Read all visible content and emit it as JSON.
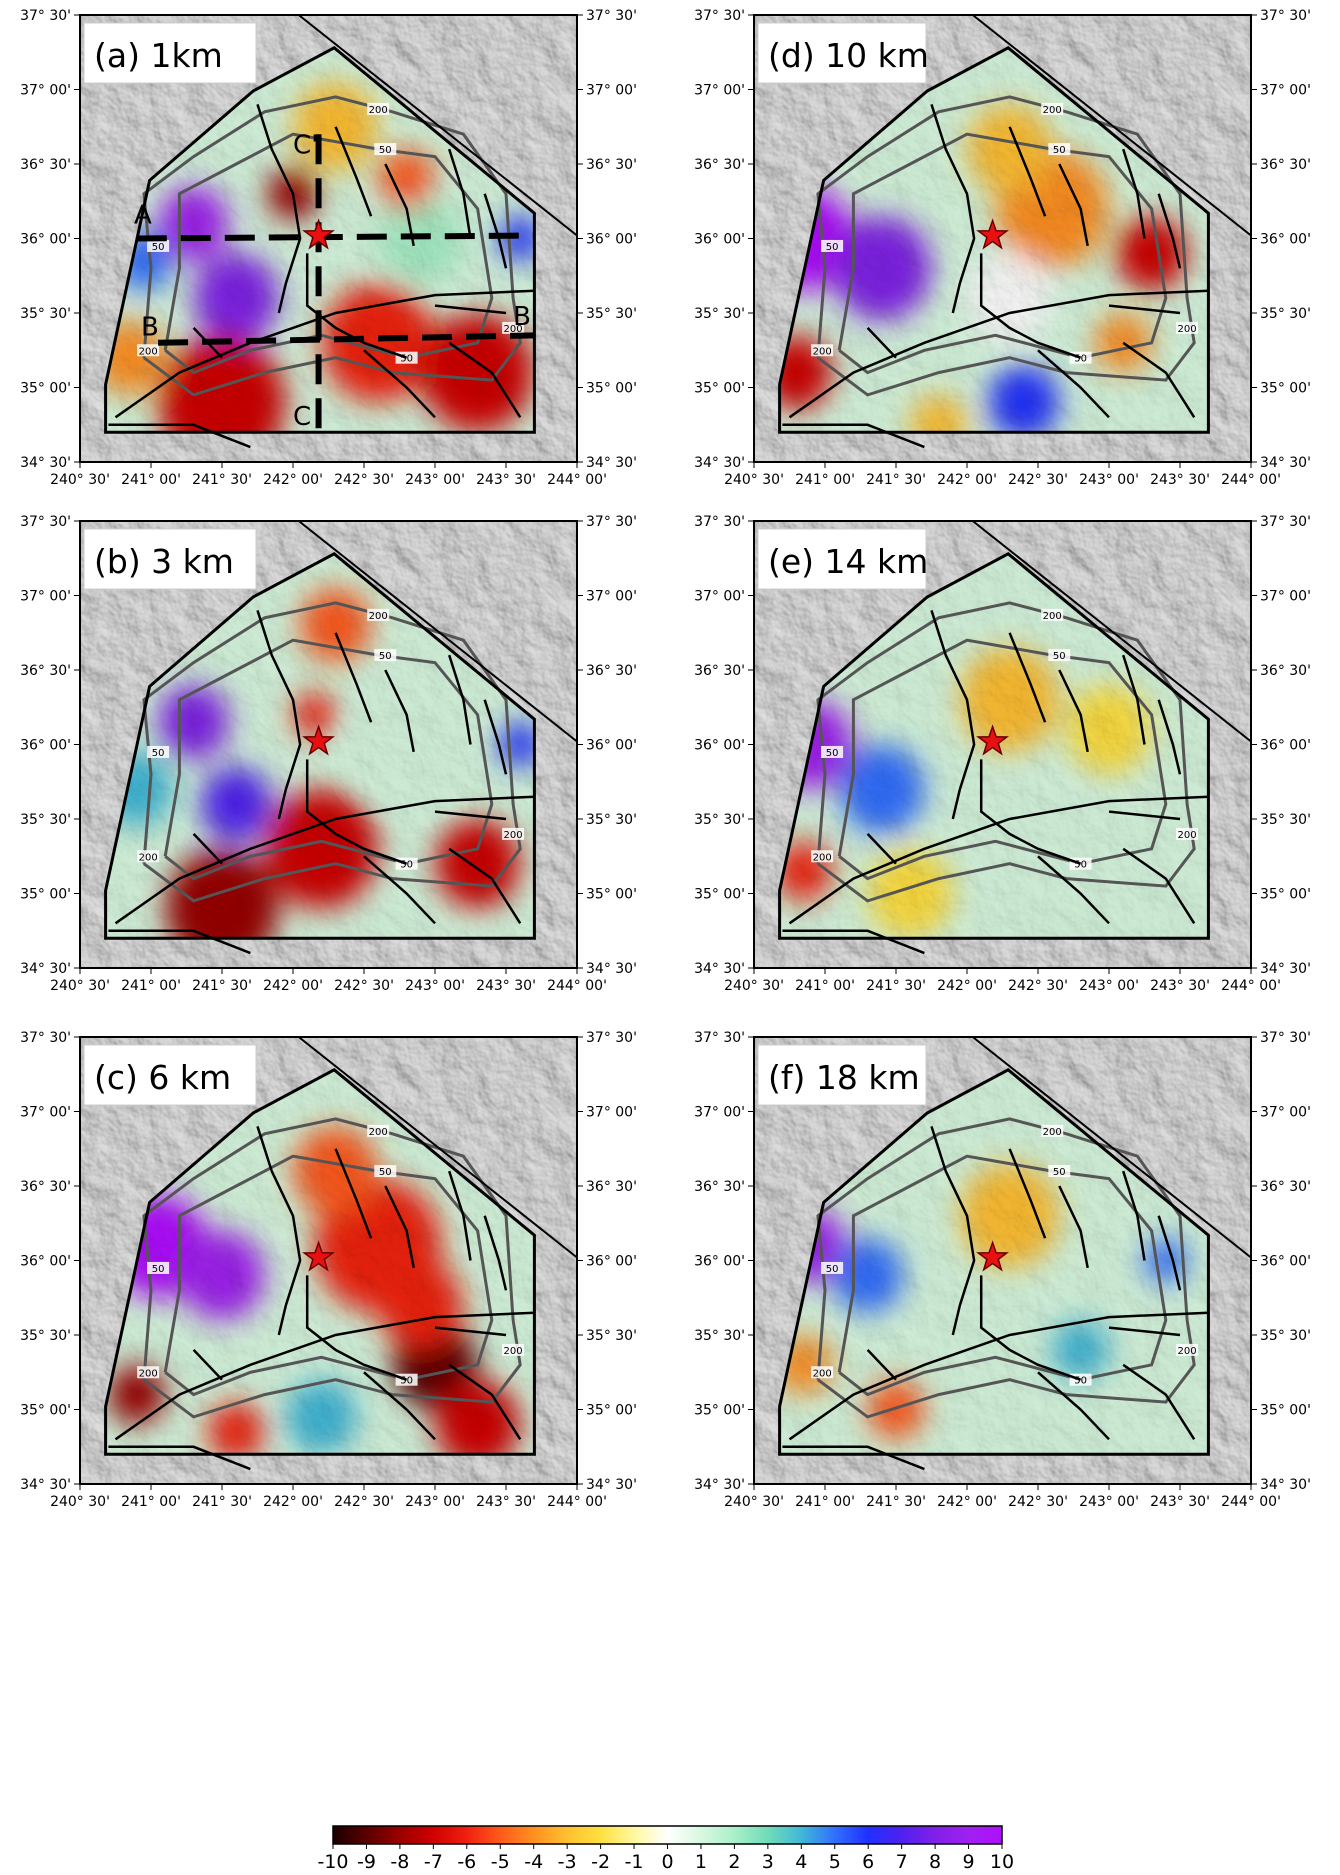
{
  "panels": [
    {
      "label": "(a) 1km",
      "section_labels": [
        "A",
        "C'",
        "B",
        "B'",
        "C"
      ]
    },
    {
      "label": "(b) 3 km"
    },
    {
      "label": "(c) 6 km"
    },
    {
      "label": "(d) 10 km"
    },
    {
      "label": "(e) 14 km"
    },
    {
      "label": "(f) 18 km"
    }
  ],
  "lon_ticks": [
    {
      "value": 240.5,
      "label": "240° 30'"
    },
    {
      "value": 241,
      "label": "241° 00'"
    },
    {
      "value": 241.5,
      "label": "241° 30'"
    },
    {
      "value": 242,
      "label": "242° 00'"
    },
    {
      "value": 242.5,
      "label": "242° 30'"
    },
    {
      "value": 243,
      "label": "243° 00'"
    },
    {
      "value": 243.5,
      "label": "243° 30'"
    },
    {
      "value": 244,
      "label": "244° 00'"
    }
  ],
  "lat_ticks": [
    {
      "value": 34.5,
      "label": "34° 30'"
    },
    {
      "value": 35,
      "label": "35° 00'"
    },
    {
      "value": 35.5,
      "label": "35° 30'"
    },
    {
      "value": 36,
      "label": "36° 00'"
    },
    {
      "value": 36.5,
      "label": "36° 30'"
    },
    {
      "value": 37,
      "label": "37° 00'"
    },
    {
      "value": 37.5,
      "label": "37° 30'"
    }
  ],
  "contour_labels": [
    "200",
    "50"
  ],
  "colorbar": {
    "ticks": [
      -10,
      -9,
      -8,
      -7,
      -6,
      -5,
      -4,
      -3,
      -2,
      -1,
      0,
      1,
      2,
      3,
      4,
      5,
      6,
      7,
      8,
      9,
      10
    ],
    "colors": [
      "#1a0000",
      "#5a0000",
      "#9a0000",
      "#d00000",
      "#f02010",
      "#ff5a1a",
      "#ff9020",
      "#ffc030",
      "#ffe040",
      "#fff8a0",
      "#ffffff",
      "#d8f8e0",
      "#a8f0c8",
      "#70dcb8",
      "#40b8d8",
      "#3070ff",
      "#2030ff",
      "#5020f0",
      "#8020e8",
      "#a020f0",
      "#b010ff"
    ]
  }
}
